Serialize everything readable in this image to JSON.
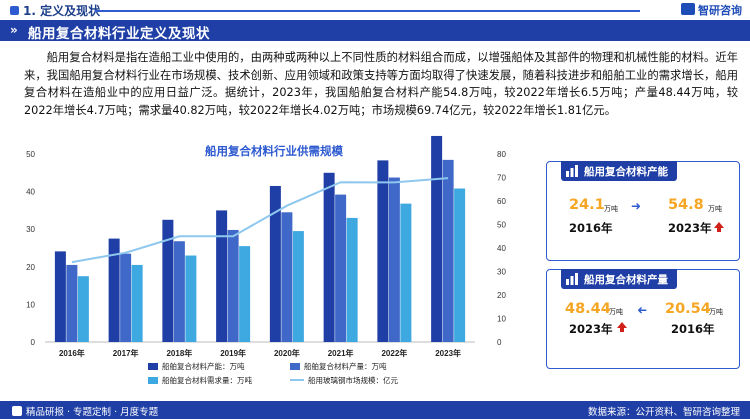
{
  "header": {
    "section_title": "1. 定义及现状",
    "logo_text": "智研咨询",
    "banner_title": "船用复合材料行业定义及现状"
  },
  "paragraph": "船用复合材料是指在造船工业中使用的，由两种或两种以上不同性质的材料组合而成，以增强船体及其部件的物理和机械性能的材料。近年来，我国船用复合材料行业在市场规模、技术创新、应用领域和政策支持等方面均取得了快速发展，随着科技进步和船舶工业的需求增长，船用复合材料在造船业中的应用日益广泛。据统计，2023年，我国船舶复合材料产能54.8万吨，较2022年增长6.5万吨；产量48.44万吨，较2022年增长4.7万吨；需求量40.82万吨，较2022年增长4.02万吨；市场规模69.74亿元，较2022年增长1.81亿元。",
  "chart_data": {
    "type": "bar",
    "title": "船用复合材料行业供需规模",
    "categories": [
      "2016年",
      "2017年",
      "2018年",
      "2019年",
      "2020年",
      "2021年",
      "2022年",
      "2023年"
    ],
    "series": [
      {
        "name": "船舶复合材料产能：万吨",
        "kind": "bar",
        "axis": "left",
        "color": "#1f3fa6",
        "values": [
          24.1,
          27.5,
          32.5,
          35.0,
          41.5,
          45.0,
          48.3,
          54.8
        ]
      },
      {
        "name": "船舶复合材料产量：万吨",
        "kind": "bar",
        "axis": "left",
        "color": "#3f68c8",
        "values": [
          20.5,
          23.5,
          26.8,
          29.8,
          34.5,
          39.2,
          43.74,
          48.44
        ]
      },
      {
        "name": "船舶复合材料需求量：万吨",
        "kind": "bar",
        "axis": "left",
        "color": "#3ea8e0",
        "values": [
          17.5,
          20.5,
          23.0,
          25.5,
          29.5,
          33.0,
          36.8,
          40.82
        ]
      },
      {
        "name": "船用玻璃钢市场规模：亿元",
        "kind": "line",
        "axis": "right",
        "color": "#8ec8ee",
        "values": [
          34,
          38,
          45,
          45,
          58,
          68,
          67.93,
          69.74
        ]
      }
    ],
    "ylim_left": [
      0,
      50
    ],
    "yticks_left": [
      0,
      10,
      20,
      30,
      40,
      50
    ],
    "ylim_right": [
      0,
      80
    ],
    "yticks_right": [
      0,
      10,
      20,
      30,
      40,
      50,
      60,
      70,
      80
    ],
    "grid": false,
    "legend_position": "bottom"
  },
  "cards": [
    {
      "title": "船用复合材料产能",
      "left_value": "24.1",
      "left_unit": "万吨",
      "left_year": "2016年",
      "right_value": "54.8",
      "right_unit": "万吨",
      "right_year": "2023年"
    },
    {
      "title": "船用复合材料产量",
      "left_value": "48.44",
      "left_unit": "万吨",
      "left_year": "2023年",
      "right_value": "20.54",
      "right_unit": "万吨",
      "right_year": "2016年"
    }
  ],
  "footer": {
    "left": "精品研报 · 专题定制 · 月度专题",
    "right": "数据来源：公开资料、智研咨询整理"
  },
  "colors": {
    "brand_blue": "#1f3fa6",
    "accent_orange": "#f5a623",
    "arrow_red": "#d0201a"
  }
}
